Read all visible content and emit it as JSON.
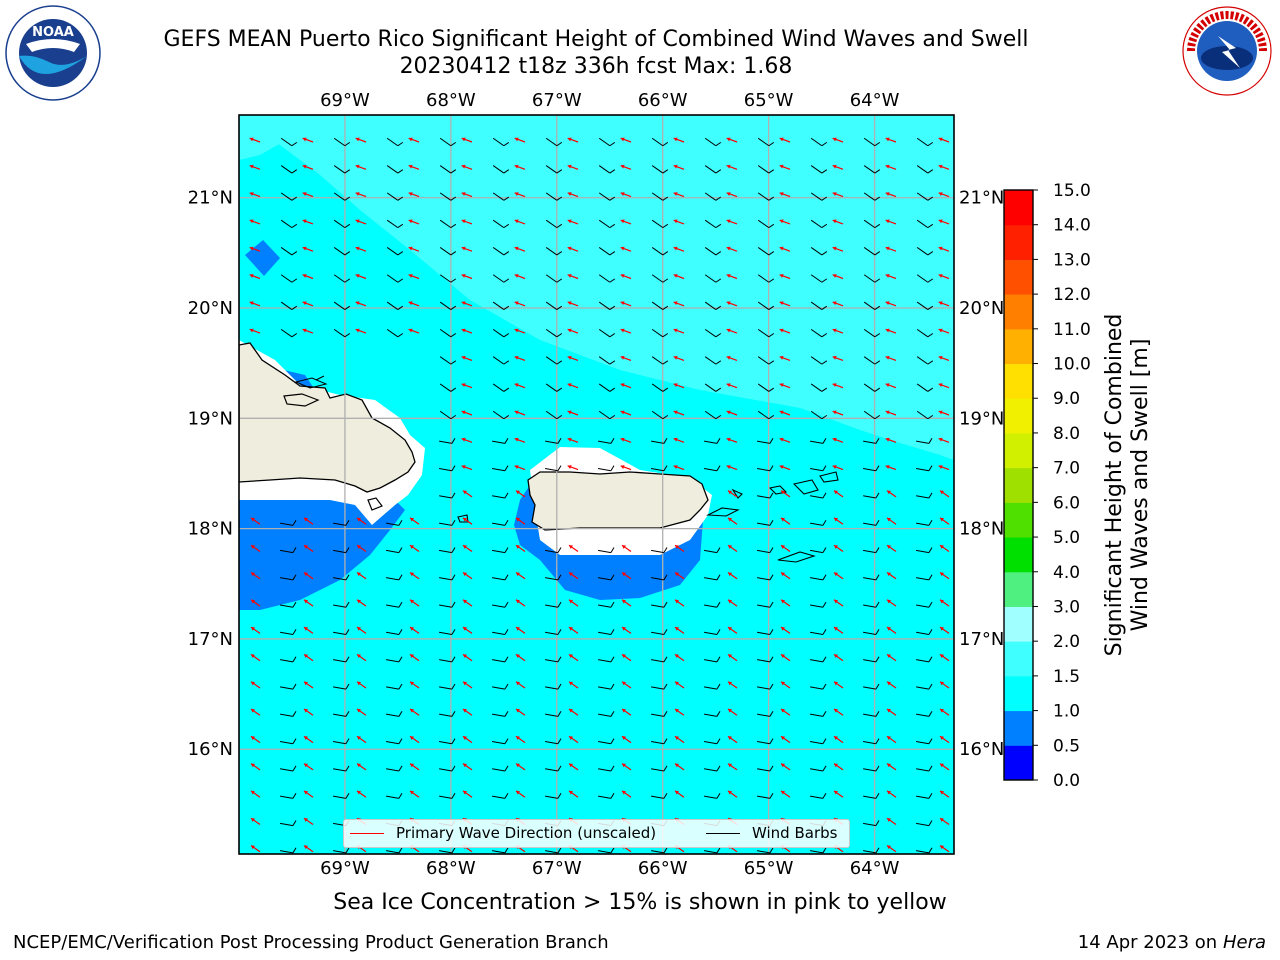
{
  "header": {
    "title_line1": "GEFS MEAN Puerto Rico Significant Height of Combined Wind Waves and Swell",
    "title_line2": "20230412 t18z 336h fcst   Max: 1.68"
  },
  "logos": {
    "left": "NOAA",
    "right": "NATIONAL WEATHER SERVICE"
  },
  "map": {
    "lon_ticks": [
      "69°W",
      "68°W",
      "67°W",
      "66°W",
      "65°W",
      "64°W"
    ],
    "lat_ticks": [
      "21°N",
      "20°N",
      "19°N",
      "18°N",
      "17°N",
      "16°N"
    ],
    "lon_range": [
      -70,
      -63.25
    ],
    "lat_range": [
      15.05,
      21.75
    ],
    "lon_tick_values": [
      -69,
      -68,
      -67,
      -66,
      -65,
      -64
    ],
    "lat_tick_values": [
      21,
      20,
      19,
      18,
      17,
      16
    ],
    "land_color": "#efedde",
    "ocean_color": "#00ffff"
  },
  "legend": {
    "primary_wave_label": "Primary Wave Direction (unscaled)",
    "wind_barbs_label": "Wind Barbs",
    "primary_wave_color": "#ff0000",
    "wind_barbs_color": "#000000"
  },
  "colorbar": {
    "label_line1": "Significant Height of Combined",
    "label_line2": "Wind Waves and Swell [m]",
    "levels": [
      "0.0",
      "0.5",
      "1.0",
      "1.5",
      "2.0",
      "3.0",
      "4.0",
      "5.0",
      "6.0",
      "7.0",
      "8.0",
      "9.0",
      "10.0",
      "11.0",
      "12.0",
      "13.0",
      "14.0",
      "15.0"
    ],
    "colors": [
      "#0000ff",
      "#0080ff",
      "#00ffff",
      "#40ffff",
      "#a0ffff",
      "#50f080",
      "#00e000",
      "#50e000",
      "#a0e000",
      "#d0f000",
      "#f0f000",
      "#ffe000",
      "#ffb000",
      "#ff8000",
      "#ff5000",
      "#ff2000",
      "#ff0000"
    ]
  },
  "caption": "Sea Ice Concentration > 15% is shown in pink to yellow",
  "footer": {
    "left": "NCEP/EMC/Verification Post Processing Product Generation Branch",
    "right_date": "14 Apr 2023 on ",
    "right_machine": "Hera"
  }
}
